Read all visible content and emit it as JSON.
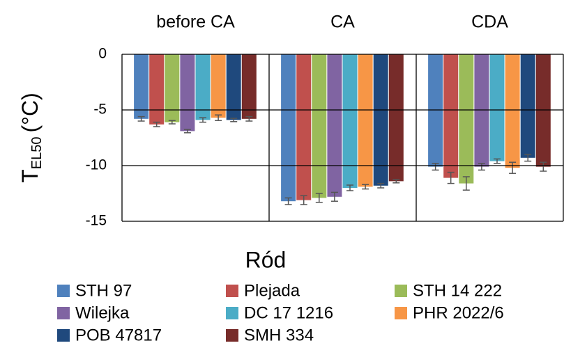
{
  "chart_data": {
    "type": "bar",
    "ylabel": {
      "main": "T",
      "sub": "EL50",
      "unit": "(°C)"
    },
    "xlabel": "Ród",
    "categories": [
      "before CA",
      "CA",
      "CDA"
    ],
    "ylim": [
      -15,
      0
    ],
    "yticks": [
      -15,
      -10,
      -5,
      0
    ],
    "grid": true,
    "legend": "bottom",
    "series": [
      {
        "name": "STH 97",
        "color": "#4f81bd",
        "values": [
          -5.8,
          -13.2,
          -10.1
        ],
        "errors": [
          0.2,
          0.3,
          0.3
        ]
      },
      {
        "name": "Plejada",
        "color": "#c0504d",
        "values": [
          -6.3,
          -13.1,
          -11.1
        ],
        "errors": [
          0.2,
          0.4,
          0.5
        ]
      },
      {
        "name": "STH 14 222",
        "color": "#9bbb59",
        "values": [
          -6.1,
          -12.9,
          -11.6
        ],
        "errors": [
          0.15,
          0.4,
          0.6
        ]
      },
      {
        "name": "Wilejka",
        "color": "#8064a2",
        "values": [
          -6.9,
          -12.8,
          -10.1
        ],
        "errors": [
          0.15,
          0.4,
          0.3
        ]
      },
      {
        "name": "DC 17 1216",
        "color": "#4bacc6",
        "values": [
          -5.9,
          -12.0,
          -9.6
        ],
        "errors": [
          0.2,
          0.25,
          0.2
        ]
      },
      {
        "name": "PHR 2022/6",
        "color": "#f79646",
        "values": [
          -5.7,
          -11.9,
          -10.2
        ],
        "errors": [
          0.25,
          0.2,
          0.5
        ]
      },
      {
        "name": "POB 47817",
        "color": "#1f497d",
        "values": [
          -5.9,
          -11.8,
          -9.3
        ],
        "errors": [
          0.15,
          0.2,
          0.3
        ]
      },
      {
        "name": "SMH 334",
        "color": "#772c2a",
        "values": [
          -5.8,
          -11.4,
          -10.1
        ],
        "errors": [
          0.2,
          0.15,
          0.4
        ]
      }
    ]
  }
}
